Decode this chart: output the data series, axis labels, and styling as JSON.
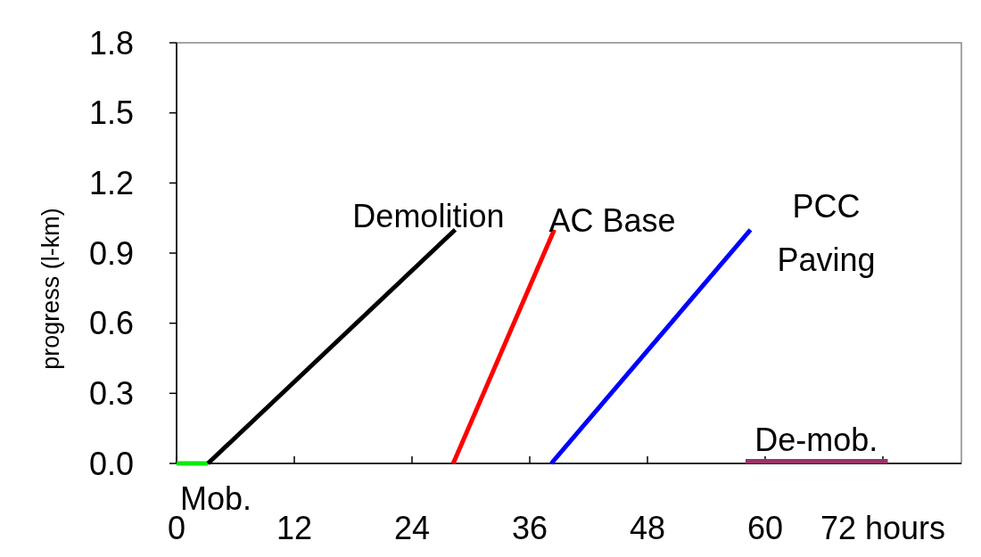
{
  "chart_data": {
    "type": "line",
    "ylabel": "progress (l-km)",
    "xlim": [
      0,
      80
    ],
    "xticks": [
      0,
      12,
      24,
      36,
      48,
      60,
      {
        "value": 72,
        "label": "72 hours"
      }
    ],
    "ylim": [
      0,
      1.8
    ],
    "yticks": [
      {
        "value": 0,
        "label": "0.0"
      },
      0.3,
      0.6,
      0.9,
      1.2,
      1.5,
      1.8
    ],
    "grid": false,
    "marker": "none",
    "line_style": "solid",
    "series": [
      {
        "color": "#00ee00",
        "x": [
          0,
          3.2
        ],
        "values": [
          0,
          0
        ]
      },
      {
        "name": "Demolition",
        "color": "#000000",
        "x": [
          3.2,
          28.4
        ],
        "values": [
          0,
          1.0
        ]
      },
      {
        "name": "AC Base",
        "color": "#ff0000",
        "x": [
          28.2,
          38.5
        ],
        "values": [
          0,
          1.0
        ]
      },
      {
        "name": "PCC Paving",
        "color": "#0000ff",
        "x": [
          38.2,
          58.5
        ],
        "values": [
          0,
          1.0
        ]
      },
      {
        "color": "#993366",
        "x": [
          58,
          72.5
        ],
        "values": [
          0.01,
          0.01
        ]
      }
    ],
    "annotations": [
      "Mob.",
      "De-mob."
    ]
  }
}
